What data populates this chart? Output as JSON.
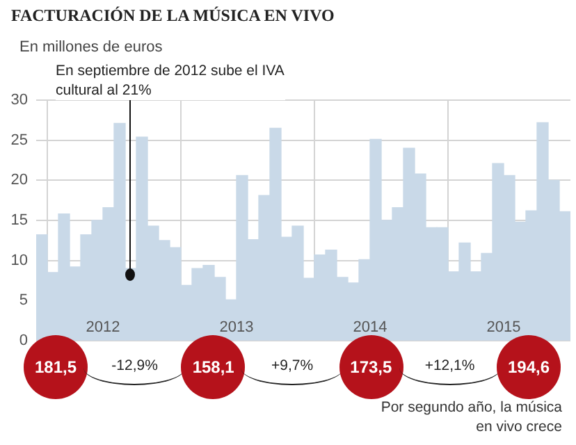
{
  "chart_data": {
    "type": "bar",
    "title": "FACTURACIÓN DE LA MÚSICA EN VIVO",
    "subtitle": "En millones de euros",
    "categories": [
      null,
      null,
      null,
      null,
      null,
      "2012",
      null,
      null,
      null,
      null,
      null,
      null,
      null,
      null,
      null,
      null,
      null,
      "2013",
      null,
      null,
      null,
      null,
      null,
      null,
      null,
      null,
      null,
      null,
      null,
      "2014",
      null,
      null,
      null,
      null,
      null,
      null,
      null,
      null,
      null,
      null,
      null,
      "2015",
      null,
      null,
      null,
      null,
      null,
      null
    ],
    "values": [
      13.2,
      8.5,
      15.8,
      9.2,
      13.2,
      15,
      16.6,
      27.1,
      9,
      25.4,
      14.3,
      12.5,
      11.6,
      6.9,
      9,
      9.4,
      7.9,
      5.1,
      20.6,
      12.6,
      18.1,
      26.5,
      12.9,
      14.3,
      7.8,
      10.7,
      11.3,
      7.9,
      7.2,
      10.1,
      25.1,
      15,
      16.6,
      24,
      20.8,
      14.1,
      14.1,
      8.6,
      12.2,
      8.6,
      10.9,
      22.1,
      20.6,
      14.8,
      16.2,
      27.2,
      20,
      16.1
    ],
    "color": "#c9d9e8",
    "ylim": [
      0,
      30
    ],
    "yticks": [
      0,
      5,
      10,
      15,
      20,
      25,
      30
    ],
    "grid": true,
    "annotations": [
      "En septiembre de 2012 sube el IVA cultural al 21%",
      "181,5",
      "-12,9%",
      "158,1",
      "+9,7%",
      "173,5",
      "+12,1%",
      "194,6",
      "Por segundo año, la música en vivo crece"
    ]
  }
}
